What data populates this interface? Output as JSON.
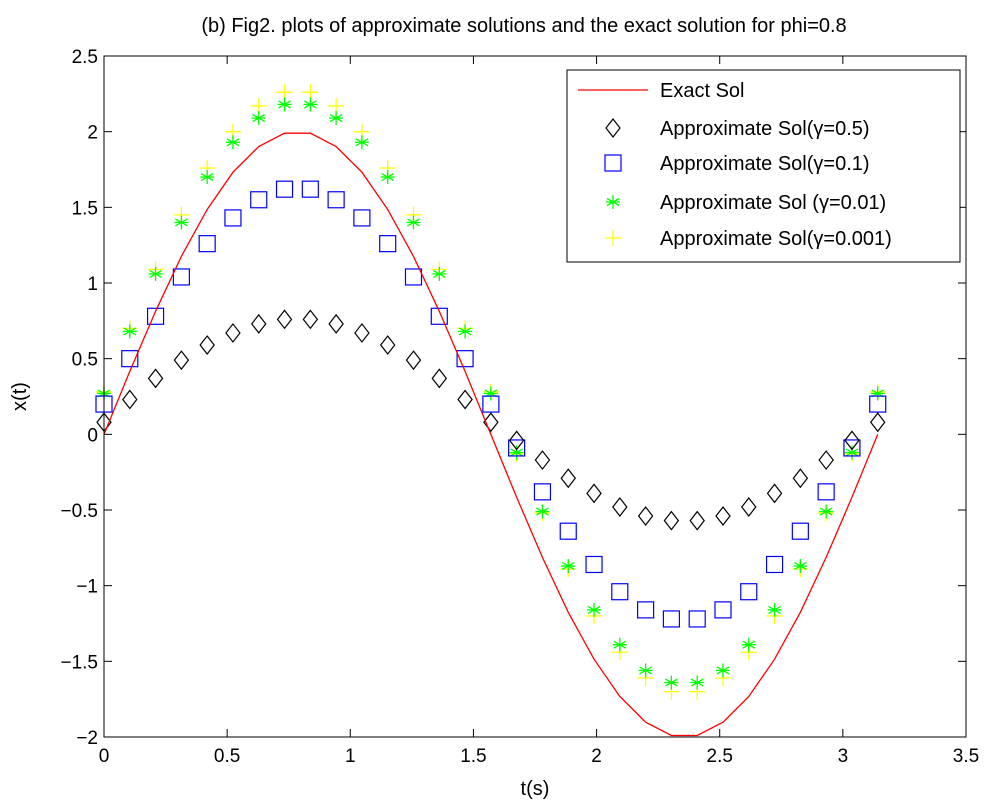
{
  "chart_data": {
    "type": "line",
    "title": "(b) Fig2. plots of approximate solutions and the exact solution for phi=0.8",
    "xlabel": "t(s)",
    "ylabel": "x(t)",
    "xlim": [
      0,
      3.5
    ],
    "ylim": [
      -2,
      2.5
    ],
    "xticks": [
      0,
      0.5,
      1,
      1.5,
      2,
      2.5,
      3,
      3.5
    ],
    "xtick_labels": [
      "0",
      "0.5",
      "1",
      "1.5",
      "2",
      "2.5",
      "3",
      "3.5"
    ],
    "yticks": [
      -2,
      -1.5,
      -1,
      -0.5,
      0,
      0.5,
      1,
      1.5,
      2,
      2.5
    ],
    "ytick_labels": [
      "−2",
      "−1.5",
      "−1",
      "−0.5",
      "0",
      "0.5",
      "1",
      "1.5",
      "2",
      "2.5"
    ],
    "grid": false,
    "legend_position": "top-right",
    "x": [
      0,
      0.1047,
      0.2094,
      0.3142,
      0.4189,
      0.5236,
      0.6283,
      0.733,
      0.8378,
      0.9425,
      1.0472,
      1.1519,
      1.2566,
      1.3614,
      1.4661,
      1.5708,
      1.6755,
      1.7802,
      1.885,
      1.9897,
      2.0944,
      2.1991,
      2.3038,
      2.4086,
      2.5133,
      2.618,
      2.7227,
      2.8274,
      2.9322,
      3.0369,
      3.1416
    ],
    "series": [
      {
        "name": "Exact Sol",
        "style": "line",
        "color": "#ff0000",
        "values": [
          0.0,
          0.416,
          0.813,
          1.176,
          1.486,
          1.732,
          1.902,
          1.99,
          1.99,
          1.902,
          1.732,
          1.486,
          1.176,
          0.813,
          0.416,
          0.0,
          -0.416,
          -0.813,
          -1.176,
          -1.486,
          -1.732,
          -1.902,
          -1.99,
          -1.99,
          -1.902,
          -1.732,
          -1.486,
          -1.176,
          -0.813,
          -0.416,
          0.0
        ]
      },
      {
        "name": "Approximate Sol(γ=0.5)",
        "style": "diamond",
        "color": "#000000",
        "values": [
          0.08,
          0.23,
          0.37,
          0.49,
          0.59,
          0.67,
          0.73,
          0.76,
          0.76,
          0.73,
          0.67,
          0.59,
          0.49,
          0.37,
          0.23,
          0.08,
          -0.04,
          -0.17,
          -0.29,
          -0.39,
          -0.48,
          -0.54,
          -0.57,
          -0.57,
          -0.54,
          -0.48,
          -0.39,
          -0.29,
          -0.17,
          -0.04,
          0.08
        ]
      },
      {
        "name": "Approximate Sol(γ=0.1)",
        "style": "square",
        "color": "#0000ff",
        "values": [
          0.2,
          0.5,
          0.78,
          1.04,
          1.26,
          1.43,
          1.55,
          1.62,
          1.62,
          1.55,
          1.43,
          1.26,
          1.04,
          0.78,
          0.5,
          0.2,
          -0.09,
          -0.38,
          -0.64,
          -0.86,
          -1.04,
          -1.16,
          -1.22,
          -1.22,
          -1.16,
          -1.04,
          -0.86,
          -0.64,
          -0.38,
          -0.09,
          0.2
        ]
      },
      {
        "name": "Approximate Sol (γ=0.01)",
        "style": "asterisk",
        "color": "#00ff00",
        "values": [
          0.27,
          0.68,
          1.06,
          1.4,
          1.7,
          1.93,
          2.09,
          2.18,
          2.18,
          2.09,
          1.93,
          1.7,
          1.4,
          1.06,
          0.68,
          0.27,
          -0.12,
          -0.51,
          -0.87,
          -1.16,
          -1.39,
          -1.56,
          -1.64,
          -1.64,
          -1.56,
          -1.39,
          -1.16,
          -0.87,
          -0.51,
          -0.12,
          0.27
        ]
      },
      {
        "name": "Approximate Sol(γ=0.001)",
        "style": "plus",
        "color": "#ffff00",
        "values": [
          0.28,
          0.7,
          1.09,
          1.45,
          1.76,
          2.0,
          2.17,
          2.26,
          2.26,
          2.17,
          2.0,
          1.76,
          1.45,
          1.09,
          0.7,
          0.28,
          -0.13,
          -0.52,
          -0.89,
          -1.2,
          -1.44,
          -1.61,
          -1.7,
          -1.7,
          -1.61,
          -1.44,
          -1.2,
          -0.89,
          -0.52,
          -0.13,
          0.28
        ]
      }
    ]
  }
}
